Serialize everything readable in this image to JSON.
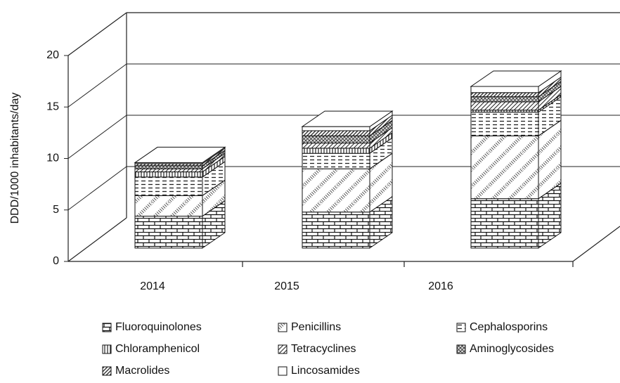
{
  "chart_data": {
    "type": "bar3d-stacked",
    "y_label": "DDD/1000 inhabitants/day",
    "categories": [
      "2014",
      "2015",
      "2016"
    ],
    "ylim": [
      0,
      20
    ],
    "yticks": [
      0,
      5,
      10,
      15,
      20
    ],
    "grid": true,
    "series": [
      {
        "name": "Fluoroquinolones",
        "pattern": "brick",
        "values": [
          3.1,
          3.5,
          4.8
        ]
      },
      {
        "name": "Penicillins",
        "pattern": "dots",
        "values": [
          2.0,
          4.2,
          6.1
        ]
      },
      {
        "name": "Cephalosporins",
        "pattern": "hdash",
        "values": [
          1.8,
          1.5,
          2.3
        ]
      },
      {
        "name": "Chloramphenicol",
        "pattern": "vlines",
        "values": [
          0.5,
          0.5,
          0.2
        ]
      },
      {
        "name": "Tetracyclines",
        "pattern": "diag",
        "values": [
          0.3,
          0.5,
          0.8
        ]
      },
      {
        "name": "Aminoglycosides",
        "pattern": "cross",
        "values": [
          0.3,
          0.7,
          0.5
        ]
      },
      {
        "name": "Macrolides",
        "pattern": "fdiag",
        "values": [
          0.2,
          0.5,
          0.4
        ]
      },
      {
        "name": "Lincosamides",
        "pattern": "none",
        "values": [
          0.1,
          0.4,
          0.6
        ]
      }
    ]
  }
}
